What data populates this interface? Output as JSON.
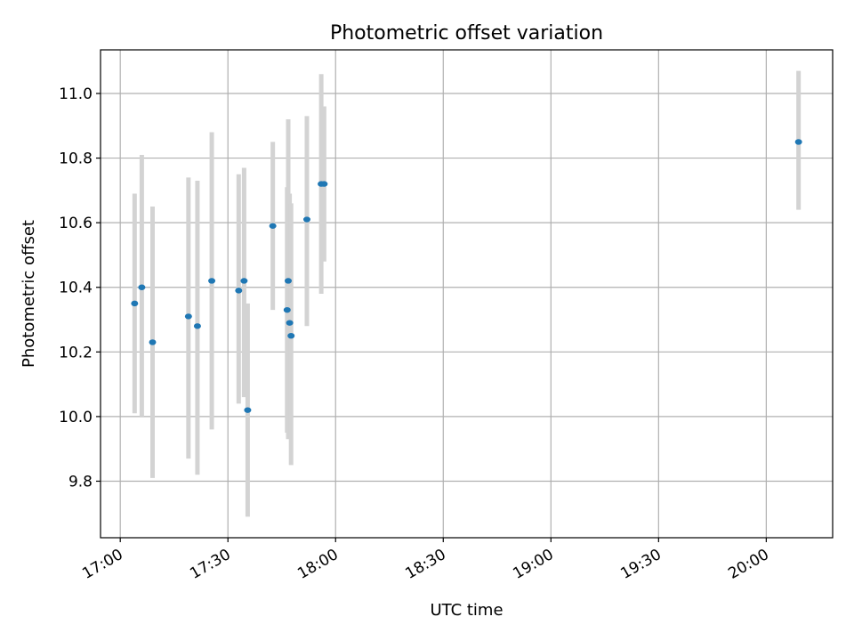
{
  "chart_data": {
    "type": "scatter",
    "title": "Photometric offset variation",
    "xlabel": "UTC time",
    "ylabel": "Photometric offset",
    "grid": true,
    "xlim_minutes": [
      -5.5,
      198.5
    ],
    "ylim": [
      9.625,
      11.135
    ],
    "x_ticks": [
      {
        "label": "17:00",
        "value": 0
      },
      {
        "label": "17:30",
        "value": 30
      },
      {
        "label": "18:00",
        "value": 60
      },
      {
        "label": "18:30",
        "value": 90
      },
      {
        "label": "19:00",
        "value": 120
      },
      {
        "label": "19:30",
        "value": 150
      },
      {
        "label": "20:00",
        "value": 180
      }
    ],
    "y_ticks": [
      9.8,
      10.0,
      10.2,
      10.4,
      10.6,
      10.8,
      11.0
    ],
    "colors": {
      "marker": "#1f77b4",
      "errorbar": "#d3d3d3",
      "grid": "#b0b0b0"
    },
    "points": [
      {
        "t": 4.0,
        "y": 10.35,
        "lo": 10.01,
        "hi": 10.69
      },
      {
        "t": 6.0,
        "y": 10.4,
        "lo": 10.0,
        "hi": 10.81
      },
      {
        "t": 9.0,
        "y": 10.23,
        "lo": 9.81,
        "hi": 10.65
      },
      {
        "t": 19.0,
        "y": 10.31,
        "lo": 9.87,
        "hi": 10.74
      },
      {
        "t": 21.5,
        "y": 10.28,
        "lo": 9.82,
        "hi": 10.73
      },
      {
        "t": 25.5,
        "y": 10.42,
        "lo": 9.96,
        "hi": 10.88
      },
      {
        "t": 33.0,
        "y": 10.39,
        "lo": 10.04,
        "hi": 10.75
      },
      {
        "t": 34.5,
        "y": 10.42,
        "lo": 10.06,
        "hi": 10.77
      },
      {
        "t": 35.5,
        "y": 10.02,
        "lo": 9.69,
        "hi": 10.35
      },
      {
        "t": 42.5,
        "y": 10.59,
        "lo": 10.33,
        "hi": 10.85
      },
      {
        "t": 46.5,
        "y": 10.33,
        "lo": 9.95,
        "hi": 10.71
      },
      {
        "t": 46.8,
        "y": 10.42,
        "lo": 9.93,
        "hi": 10.92
      },
      {
        "t": 47.2,
        "y": 10.29,
        "lo": 9.98,
        "hi": 10.69
      },
      {
        "t": 47.6,
        "y": 10.25,
        "lo": 9.85,
        "hi": 10.66
      },
      {
        "t": 52.0,
        "y": 10.61,
        "lo": 10.28,
        "hi": 10.93
      },
      {
        "t": 56.0,
        "y": 10.72,
        "lo": 10.38,
        "hi": 11.06
      },
      {
        "t": 56.8,
        "y": 10.72,
        "lo": 10.48,
        "hi": 10.96
      },
      {
        "t": 189.0,
        "y": 10.85,
        "lo": 10.64,
        "hi": 11.07
      }
    ]
  }
}
